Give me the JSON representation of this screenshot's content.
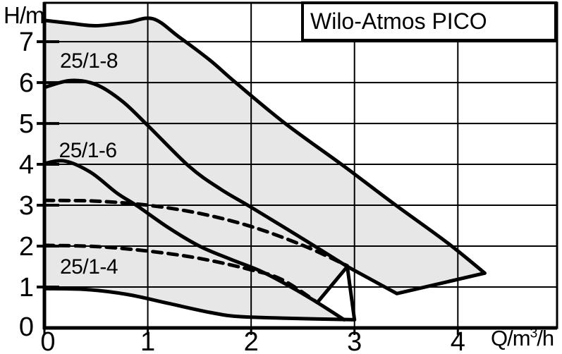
{
  "header": {
    "title": "Wilo-Atmos PICO"
  },
  "axes": {
    "y_label": "H/m",
    "x_label_prefix": "Q/m",
    "x_label_sup": "3",
    "x_label_suffix": "/h"
  },
  "pump_labels": [
    {
      "text": "25/1-8",
      "q": 0.15,
      "h": 6.82
    },
    {
      "text": "25/1-6",
      "q": 0.14,
      "h": 4.63
    },
    {
      "text": "25/1-4",
      "q": 0.15,
      "h": 1.77
    }
  ],
  "chart_data": {
    "type": "area",
    "title": "Wilo-Atmos PICO",
    "xlabel": "Q/m³/h",
    "ylabel": "H/m",
    "xlim": [
      0,
      4.96
    ],
    "ylim": [
      0,
      7.95
    ],
    "x_ticks": [
      0,
      1,
      2,
      3,
      4
    ],
    "y_ticks": [
      0,
      1,
      2,
      3,
      4,
      5,
      6,
      7
    ],
    "grid": true,
    "legend": false,
    "background": "#ffffff",
    "region_fill": "#e7e7e7",
    "line_color": "#000000",
    "region": {
      "top": [
        [
          0,
          7.52
        ],
        [
          0.25,
          7.45
        ],
        [
          0.5,
          7.39
        ],
        [
          0.8,
          7.47
        ],
        [
          1.05,
          7.56
        ],
        [
          1.3,
          7.12
        ],
        [
          1.6,
          6.55
        ],
        [
          1.85,
          6.0
        ],
        [
          2.33,
          5.0
        ],
        [
          2.9,
          3.95
        ],
        [
          3.4,
          3.0
        ],
        [
          3.9,
          2.08
        ],
        [
          4.26,
          1.34
        ]
      ],
      "return": [
        [
          3.41,
          0.84
        ],
        [
          2.93,
          1.5
        ],
        [
          2.64,
          0.62
        ],
        [
          2.9,
          0.2
        ],
        [
          2.3,
          0.24
        ],
        [
          1.87,
          0.28
        ],
        [
          1.6,
          0.38
        ],
        [
          1.2,
          0.6
        ],
        [
          0.8,
          0.82
        ],
        [
          0.4,
          0.94
        ],
        [
          0,
          0.96
        ]
      ]
    },
    "series": [
      {
        "id": "curve-25-1-8-max",
        "name": "25/1-8 max curve",
        "style": "solid",
        "smooth": true,
        "points": [
          [
            0,
            7.52
          ],
          [
            0.25,
            7.45
          ],
          [
            0.5,
            7.39
          ],
          [
            0.8,
            7.47
          ],
          [
            1.05,
            7.56
          ],
          [
            1.3,
            7.12
          ],
          [
            1.6,
            6.55
          ],
          [
            1.85,
            6.0
          ],
          [
            2.33,
            5.0
          ],
          [
            2.9,
            3.95
          ],
          [
            3.4,
            3.0
          ],
          [
            3.9,
            2.08
          ],
          [
            4.26,
            1.34
          ]
        ]
      },
      {
        "id": "field-25-1-8-bottom-edge",
        "name": "25/1-8 field bottom edge",
        "style": "solid",
        "smooth": false,
        "points": [
          [
            4.26,
            1.34
          ],
          [
            3.41,
            0.84
          ],
          [
            2.93,
            1.5
          ]
        ]
      },
      {
        "id": "curve-25-1-6-max",
        "name": "25/1-6 max curve",
        "style": "solid",
        "smooth": true,
        "points": [
          [
            0,
            5.88
          ],
          [
            0.25,
            6.05
          ],
          [
            0.5,
            5.95
          ],
          [
            0.75,
            5.55
          ],
          [
            1.0,
            4.95
          ],
          [
            1.4,
            3.95
          ],
          [
            1.7,
            3.4
          ],
          [
            2.0,
            2.95
          ],
          [
            2.5,
            2.18
          ],
          [
            2.93,
            1.5
          ]
        ]
      },
      {
        "id": "curve-25-1-4-max",
        "name": "25/1-4 max curve",
        "style": "solid",
        "smooth": true,
        "points": [
          [
            0,
            4.02
          ],
          [
            0.2,
            4.08
          ],
          [
            0.45,
            3.8
          ],
          [
            0.7,
            3.3
          ],
          [
            0.9,
            2.98
          ],
          [
            1.2,
            2.45
          ],
          [
            1.5,
            2.0
          ],
          [
            1.8,
            1.68
          ],
          [
            2.1,
            1.38
          ],
          [
            2.4,
            0.98
          ],
          [
            2.64,
            0.62
          ],
          [
            2.9,
            0.2
          ]
        ]
      },
      {
        "id": "curve-min-speed-bottom",
        "name": "minimum speed bottom curve",
        "style": "solid",
        "smooth": true,
        "points": [
          [
            0,
            0.96
          ],
          [
            0.4,
            0.94
          ],
          [
            0.8,
            0.82
          ],
          [
            1.2,
            0.6
          ],
          [
            1.6,
            0.38
          ],
          [
            1.87,
            0.28
          ],
          [
            2.3,
            0.24
          ],
          [
            3.0,
            0.2
          ]
        ]
      },
      {
        "id": "field-25-1-6-right-edge",
        "name": "25/1-6 field right edge",
        "style": "solid",
        "smooth": false,
        "points": [
          [
            2.93,
            1.5
          ],
          [
            3.0,
            0.2
          ]
        ]
      },
      {
        "id": "field-25-1-6-left-connector",
        "name": "25/1-6 to 25/1-4 connector edge",
        "style": "solid",
        "smooth": false,
        "points": [
          [
            2.93,
            1.5
          ],
          [
            2.64,
            0.62
          ]
        ]
      },
      {
        "id": "dashed-dpv-upper",
        "name": "Δp-v control curve upper (dashed)",
        "style": "dashed",
        "smooth": true,
        "points": [
          [
            0,
            3.12
          ],
          [
            0.5,
            3.1
          ],
          [
            1.0,
            3.0
          ],
          [
            1.5,
            2.8
          ],
          [
            2.0,
            2.48
          ],
          [
            2.5,
            2.02
          ],
          [
            2.93,
            1.52
          ]
        ]
      },
      {
        "id": "dashed-dpv-lower",
        "name": "Δp-v control curve lower (dashed)",
        "style": "dashed",
        "smooth": true,
        "points": [
          [
            0,
            2.02
          ],
          [
            0.5,
            1.99
          ],
          [
            1.0,
            1.88
          ],
          [
            1.5,
            1.7
          ],
          [
            2.0,
            1.42
          ],
          [
            2.3,
            1.18
          ],
          [
            2.64,
            0.62
          ]
        ]
      }
    ]
  }
}
